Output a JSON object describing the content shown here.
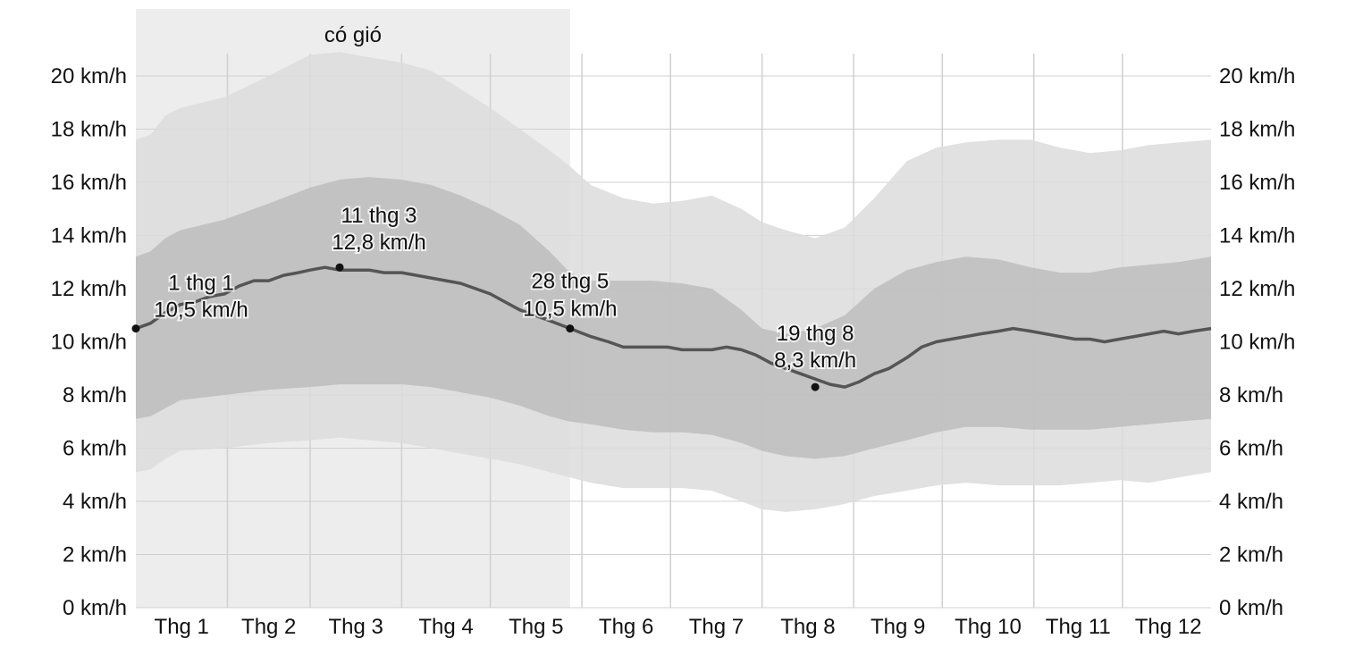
{
  "chart_data": {
    "type": "area",
    "title": "",
    "xlabel": "",
    "ylabel": "",
    "y_unit": "km/h",
    "ylim": [
      0,
      20
    ],
    "y_ticks": [
      "0 km/h",
      "2 km/h",
      "4 km/h",
      "6 km/h",
      "8 km/h",
      "10 km/h",
      "12 km/h",
      "14 km/h",
      "16 km/h",
      "18 km/h",
      "20 km/h"
    ],
    "x_ticks": [
      "Thg 1",
      "Thg 2",
      "Thg 3",
      "Thg 4",
      "Thg 5",
      "Thg 6",
      "Thg 7",
      "Thg 8",
      "Thg 9",
      "Thg 10",
      "Thg 11",
      "Thg 12"
    ],
    "x_range_days": [
      1,
      365
    ],
    "grid": true,
    "shaded_region": {
      "label": "có gió",
      "start_day": 1,
      "end_day": 148
    },
    "series": [
      {
        "role": "band-outer",
        "days": [
          1,
          6,
          11,
          16,
          31,
          46,
          60,
          70,
          80,
          91,
          101,
          111,
          121,
          131,
          141,
          148,
          155,
          166,
          176,
          186,
          196,
          206,
          213,
          221,
          231,
          241,
          251,
          262,
          272,
          282,
          293,
          304,
          314,
          324,
          334,
          344,
          354,
          365
        ],
        "low": [
          5.1,
          5.2,
          5.6,
          5.9,
          6.0,
          6.2,
          6.3,
          6.4,
          6.3,
          6.2,
          6.0,
          5.8,
          5.6,
          5.4,
          5.1,
          4.9,
          4.7,
          4.5,
          4.5,
          4.5,
          4.4,
          4.0,
          3.7,
          3.6,
          3.7,
          3.9,
          4.2,
          4.4,
          4.6,
          4.7,
          4.6,
          4.6,
          4.6,
          4.7,
          4.8,
          4.7,
          4.9,
          5.1
        ],
        "high": [
          17.6,
          17.8,
          18.5,
          18.8,
          19.2,
          20.0,
          20.8,
          20.9,
          20.7,
          20.5,
          20.2,
          19.5,
          18.8,
          18.0,
          17.2,
          16.6,
          15.9,
          15.4,
          15.2,
          15.3,
          15.5,
          15.0,
          14.5,
          14.2,
          13.9,
          14.3,
          15.4,
          16.8,
          17.3,
          17.5,
          17.6,
          17.6,
          17.3,
          17.1,
          17.2,
          17.4,
          17.5,
          17.6
        ]
      },
      {
        "role": "band-inner",
        "days": [
          1,
          6,
          11,
          16,
          31,
          46,
          60,
          70,
          80,
          91,
          101,
          111,
          121,
          131,
          141,
          148,
          155,
          166,
          176,
          186,
          196,
          206,
          213,
          221,
          231,
          241,
          251,
          262,
          272,
          282,
          293,
          304,
          314,
          324,
          334,
          344,
          354,
          365
        ],
        "low": [
          7.1,
          7.2,
          7.5,
          7.8,
          8.0,
          8.2,
          8.3,
          8.4,
          8.4,
          8.4,
          8.3,
          8.1,
          7.9,
          7.6,
          7.2,
          7.0,
          6.9,
          6.7,
          6.6,
          6.6,
          6.5,
          6.2,
          5.9,
          5.7,
          5.6,
          5.7,
          6.0,
          6.3,
          6.6,
          6.8,
          6.8,
          6.7,
          6.7,
          6.7,
          6.8,
          6.9,
          7.0,
          7.1
        ],
        "high": [
          13.2,
          13.4,
          13.9,
          14.2,
          14.6,
          15.2,
          15.8,
          16.1,
          16.2,
          16.1,
          15.9,
          15.5,
          15.0,
          14.4,
          13.4,
          12.6,
          12.3,
          12.3,
          12.3,
          12.2,
          12.0,
          11.2,
          10.5,
          10.3,
          10.5,
          11.0,
          12.0,
          12.7,
          13.0,
          13.2,
          13.1,
          12.8,
          12.6,
          12.6,
          12.8,
          12.9,
          13.0,
          13.2
        ]
      },
      {
        "role": "average",
        "days": [
          1,
          6,
          11,
          16,
          21,
          26,
          31,
          36,
          41,
          46,
          51,
          56,
          60,
          65,
          70,
          75,
          80,
          85,
          91,
          96,
          101,
          106,
          111,
          116,
          121,
          126,
          131,
          136,
          141,
          148,
          155,
          161,
          166,
          171,
          176,
          181,
          186,
          191,
          196,
          201,
          206,
          211,
          216,
          221,
          226,
          231,
          236,
          241,
          246,
          251,
          256,
          262,
          267,
          272,
          277,
          282,
          287,
          293,
          298,
          304,
          309,
          314,
          319,
          324,
          329,
          334,
          339,
          344,
          349,
          354,
          359,
          365
        ],
        "values": [
          10.5,
          10.7,
          11.1,
          11.4,
          11.5,
          11.7,
          11.8,
          12.1,
          12.3,
          12.3,
          12.5,
          12.6,
          12.7,
          12.8,
          12.7,
          12.7,
          12.7,
          12.6,
          12.6,
          12.5,
          12.4,
          12.3,
          12.2,
          12.0,
          11.8,
          11.5,
          11.2,
          11.0,
          10.8,
          10.5,
          10.2,
          10.0,
          9.8,
          9.8,
          9.8,
          9.8,
          9.7,
          9.7,
          9.7,
          9.8,
          9.7,
          9.5,
          9.2,
          9.0,
          8.8,
          8.6,
          8.4,
          8.3,
          8.5,
          8.8,
          9.0,
          9.4,
          9.8,
          10.0,
          10.1,
          10.2,
          10.3,
          10.4,
          10.5,
          10.4,
          10.3,
          10.2,
          10.1,
          10.1,
          10.0,
          10.1,
          10.2,
          10.3,
          10.4,
          10.3,
          10.4,
          10.5
        ]
      }
    ],
    "annotations": [
      {
        "day": 1,
        "value": 10.5,
        "date_label": "1 thg 1",
        "value_label": "10,5 km/h"
      },
      {
        "day": 70,
        "value": 12.8,
        "date_label": "11 thg 3",
        "value_label": "12,8 km/h"
      },
      {
        "day": 148,
        "value": 10.5,
        "date_label": "28 thg 5",
        "value_label": "10,5 km/h"
      },
      {
        "day": 231,
        "value": 8.3,
        "date_label": "19 thg 8",
        "value_label": "8,3 km/h"
      }
    ],
    "colors": {
      "band_outer": "#dcdcdc",
      "band_inner": "#bdbdbd",
      "average_line": "#555555",
      "shaded_region": "#b8b8b8",
      "grid": "#d0d0d0"
    }
  }
}
